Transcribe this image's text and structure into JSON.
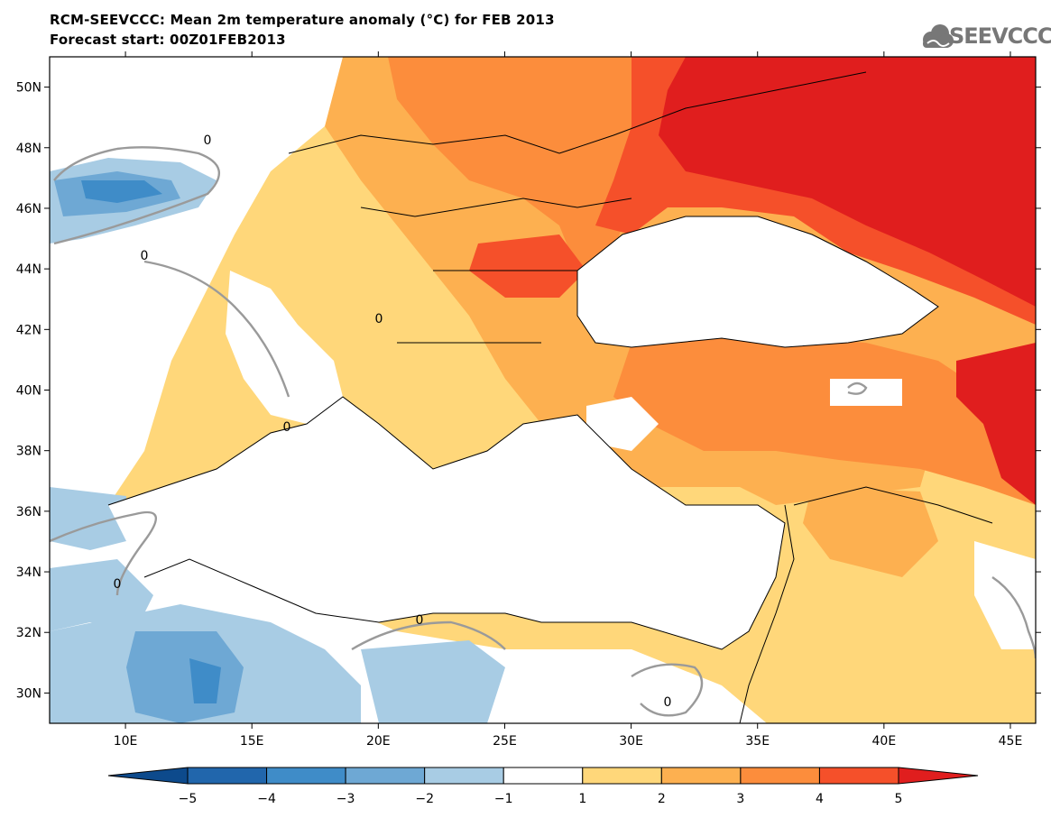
{
  "title": {
    "line1": "RCM-SEEVCCC: Mean 2m temperature anomaly (°C) for FEB 2013",
    "line2": "Forecast start: 00Z01FEB2013"
  },
  "logo": {
    "text": "SEEVCCC",
    "icon": "cloud-icon"
  },
  "map": {
    "lon_range": [
      7,
      46
    ],
    "lat_range": [
      29,
      51
    ],
    "lon_ticks": [
      {
        "value": 10,
        "label": "10E"
      },
      {
        "value": 15,
        "label": "15E"
      },
      {
        "value": 20,
        "label": "20E"
      },
      {
        "value": 25,
        "label": "25E"
      },
      {
        "value": 30,
        "label": "30E"
      },
      {
        "value": 35,
        "label": "35E"
      },
      {
        "value": 40,
        "label": "40E"
      },
      {
        "value": 45,
        "label": "45E"
      }
    ],
    "lat_ticks": [
      {
        "value": 30,
        "label": "30N"
      },
      {
        "value": 32,
        "label": "32N"
      },
      {
        "value": 34,
        "label": "34N"
      },
      {
        "value": 36,
        "label": "36N"
      },
      {
        "value": 38,
        "label": "38N"
      },
      {
        "value": 40,
        "label": "40N"
      },
      {
        "value": 42,
        "label": "42N"
      },
      {
        "value": 44,
        "label": "44N"
      },
      {
        "value": 46,
        "label": "46N"
      },
      {
        "value": 48,
        "label": "48N"
      },
      {
        "value": 50,
        "label": "50N"
      }
    ],
    "contour_label": "0"
  },
  "colorbar": {
    "levels": [
      "−5",
      "−4",
      "−3",
      "−2",
      "−1",
      "1",
      "2",
      "3",
      "4",
      "5"
    ],
    "colors": [
      "#0d4a8c",
      "#2166ac",
      "#3f8cc8",
      "#6ea8d4",
      "#a8cce4",
      "#ffffff",
      "#ffd77a",
      "#fdb050",
      "#fc8d3c",
      "#f5502a",
      "#e01e1e"
    ]
  }
}
